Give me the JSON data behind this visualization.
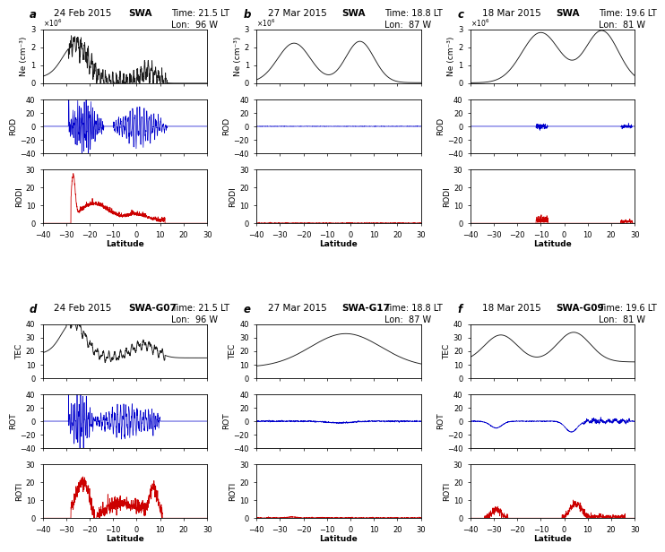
{
  "panels": [
    {
      "label": "a",
      "date": "24 Feb 2015",
      "instrument": "SWA",
      "time": "Time: 21.5 LT",
      "lon": "Lon:  96 W",
      "row": 0,
      "col": 0,
      "ne_type": "ne_a",
      "rod_type": "rod_a",
      "rodi_type": "rodi_a",
      "ne_ylim": [
        0.0,
        3.0
      ],
      "rod_ylim": [
        -40,
        40
      ],
      "rodi_ylim": [
        0,
        30
      ],
      "ne_ylabel": "Ne (cm⁻³)",
      "rod_ylabel": "ROD",
      "rodi_ylabel": "RODI"
    },
    {
      "label": "b",
      "date": "27 Mar 2015",
      "instrument": "SWA",
      "time": "Time: 18.8 LT",
      "lon": "Lon:  87 W",
      "row": 0,
      "col": 1,
      "ne_type": "ne_b",
      "rod_type": "rod_b",
      "rodi_type": "rodi_b",
      "ne_ylim": [
        0.0,
        3.0
      ],
      "rod_ylim": [
        -40,
        40
      ],
      "rodi_ylim": [
        0,
        30
      ],
      "ne_ylabel": "Ne (cm⁻³)",
      "rod_ylabel": "ROD",
      "rodi_ylabel": "RODI"
    },
    {
      "label": "c",
      "date": "18 Mar 2015",
      "instrument": "SWA",
      "time": "Time: 19.6 LT",
      "lon": "Lon:  81 W",
      "row": 0,
      "col": 2,
      "ne_type": "ne_c",
      "rod_type": "rod_c",
      "rodi_type": "rodi_c",
      "ne_ylim": [
        0.0,
        3.0
      ],
      "rod_ylim": [
        -40,
        40
      ],
      "rodi_ylim": [
        0,
        30
      ],
      "ne_ylabel": "Ne (cm⁻³)",
      "rod_ylabel": "ROD",
      "rodi_ylabel": "RODI"
    },
    {
      "label": "d",
      "date": "24 Feb 2015",
      "instrument": "SWA-G07",
      "time": "Time: 21.5 LT",
      "lon": "Lon:  96 W",
      "row": 1,
      "col": 0,
      "ne_type": "tec_d",
      "rod_type": "rot_d",
      "rodi_type": "roti_d",
      "ne_ylim": [
        0,
        40
      ],
      "rod_ylim": [
        -40,
        40
      ],
      "rodi_ylim": [
        0,
        30
      ],
      "ne_ylabel": "TEC",
      "rod_ylabel": "ROT",
      "rodi_ylabel": "ROTI"
    },
    {
      "label": "e",
      "date": "27 Mar 2015",
      "instrument": "SWA-G17",
      "time": "Time: 18.8 LT",
      "lon": "Lon:  87 W",
      "row": 1,
      "col": 1,
      "ne_type": "tec_e",
      "rod_type": "rot_e",
      "rodi_type": "roti_e",
      "ne_ylim": [
        0,
        40
      ],
      "rod_ylim": [
        -40,
        40
      ],
      "rodi_ylim": [
        0,
        30
      ],
      "ne_ylabel": "TEC",
      "rod_ylabel": "ROT",
      "rodi_ylabel": "ROTI"
    },
    {
      "label": "f",
      "date": "18 Mar 2015",
      "instrument": "SWA-G09",
      "time": "Time: 19.6 LT",
      "lon": "Lon:  81 W",
      "row": 1,
      "col": 2,
      "ne_type": "tec_f",
      "rod_type": "rot_f",
      "rodi_type": "roti_f",
      "ne_ylim": [
        0,
        40
      ],
      "rod_ylim": [
        -40,
        40
      ],
      "rodi_ylim": [
        0,
        30
      ],
      "ne_ylabel": "TEC",
      "rod_ylabel": "ROT",
      "rodi_ylabel": "ROTI"
    }
  ],
  "xlim": [
    -40,
    30
  ],
  "xlabel": "Latitude",
  "black_color": "#1a1a1a",
  "blue_color": "#0000cc",
  "red_color": "#cc0000",
  "bg_color": "#ffffff",
  "title_fontsize": 7.5,
  "label_fontsize": 6.5,
  "tick_fontsize": 6
}
